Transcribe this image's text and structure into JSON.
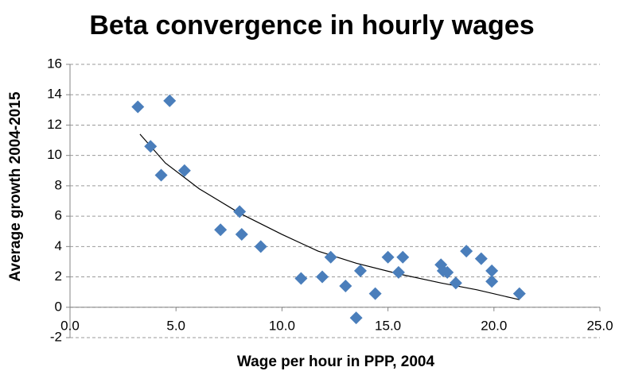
{
  "chart_data": {
    "type": "scatter",
    "title": "Beta convergence in hourly wages",
    "x_label": "Wage per hour in PPP, 2004",
    "y_label": "Average growth 2004-2015",
    "series": [
      {
        "color": "#4a7ebb",
        "x": [
          3.2,
          3.8,
          4.3,
          4.7,
          5.4,
          7.1,
          8.0,
          8.1,
          9.0,
          10.9,
          11.9,
          12.3,
          13.0,
          13.5,
          13.7,
          14.4,
          15.0,
          15.5,
          15.7,
          17.5,
          17.6,
          17.8,
          18.2,
          18.7,
          19.4,
          19.9,
          19.9,
          21.2
        ],
        "values": [
          13.2,
          10.6,
          8.7,
          13.6,
          9.0,
          5.1,
          6.3,
          4.8,
          4.0,
          1.9,
          2.0,
          3.3,
          1.4,
          -0.7,
          2.4,
          0.9,
          3.3,
          2.3,
          3.3,
          2.8,
          2.4,
          2.3,
          1.6,
          3.7,
          3.2,
          2.4,
          1.7,
          0.9
        ]
      }
    ],
    "trendline": {
      "color": "#000000",
      "x": [
        3.3,
        4.5,
        6.1,
        8.0,
        10.0,
        11.7,
        13.5,
        15.5,
        17.5,
        19.2,
        21.2
      ],
      "values": [
        11.4,
        9.5,
        7.8,
        6.2,
        4.8,
        3.7,
        2.9,
        2.2,
        1.6,
        1.15,
        0.5
      ]
    },
    "xlim": [
      0,
      25
    ],
    "xticks": [
      {
        "value": 0,
        "label": "0.0"
      },
      {
        "value": 5,
        "label": "5.0"
      },
      {
        "value": 10,
        "label": "10.0"
      },
      {
        "value": 15,
        "label": "15.0"
      },
      {
        "value": 20,
        "label": "20.0"
      },
      {
        "value": 25,
        "label": "25.0"
      }
    ],
    "ylim": [
      -2,
      16
    ],
    "yticks": [
      -2,
      0,
      2,
      4,
      6,
      8,
      10,
      12,
      14,
      16
    ],
    "grid": true
  }
}
